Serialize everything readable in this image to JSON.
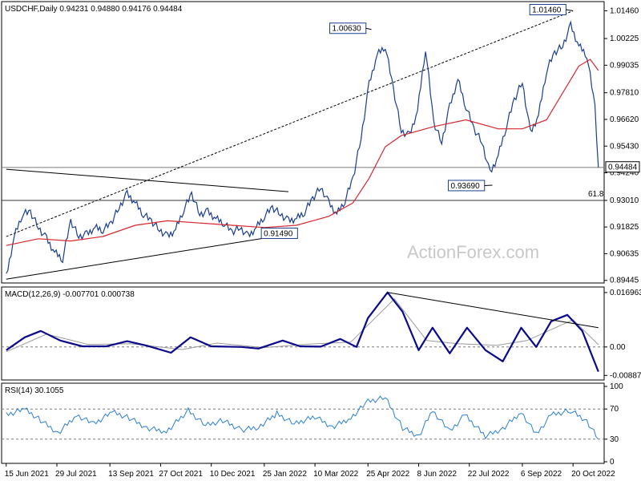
{
  "chart_data": [
    {
      "type": "line",
      "panel": "price",
      "header": "USDCHF,Daily  0.94231 0.94880 0.94176 0.94484",
      "yaxis": {
        "ticks": [
          1.0146,
          1.00225,
          0.99035,
          0.9781,
          0.9662,
          0.9543,
          0.9424,
          0.9301,
          0.91825,
          0.90635,
          0.89445
        ],
        "tick_labels": [
          "1.01460",
          "1.00225",
          "0.99035",
          "0.97810",
          "0.96620",
          "0.95430",
          "0.94240",
          "0.93010",
          "0.91825",
          "0.90635",
          "0.89445"
        ],
        "range": [
          0.894,
          1.018
        ]
      },
      "last_price": 0.94484,
      "last_price_label": "0.94484",
      "pivots": [
        {
          "label": "1.00630",
          "date": "2022-04-28",
          "value": 1.0063
        },
        {
          "label": "1.01460",
          "date": "2022-10-20",
          "value": 1.0146
        },
        {
          "label": "0.93690",
          "date": "2022-08-11",
          "value": 0.9369
        },
        {
          "label": "0.91490",
          "date": "2022-01-28",
          "value": 0.9149
        }
      ],
      "fib_label": "61.8",
      "fib_level": 0.9301,
      "horizontal_line": 0.9448,
      "series": [
        {
          "kind": "ohlc_close",
          "points": [
            [
              "2021-06-15",
              0.896
            ],
            [
              "2021-06-22",
              0.914
            ],
            [
              "2021-06-29",
              0.924
            ],
            [
              "2021-07-06",
              0.925
            ],
            [
              "2021-07-13",
              0.918
            ],
            [
              "2021-07-20",
              0.913
            ],
            [
              "2021-07-27",
              0.907
            ],
            [
              "2021-08-03",
              0.904
            ],
            [
              "2021-08-10",
              0.921
            ],
            [
              "2021-08-17",
              0.914
            ],
            [
              "2021-08-24",
              0.915
            ],
            [
              "2021-08-31",
              0.918
            ],
            [
              "2021-09-07",
              0.917
            ],
            [
              "2021-09-14",
              0.92
            ],
            [
              "2021-09-21",
              0.927
            ],
            [
              "2021-09-28",
              0.933
            ],
            [
              "2021-10-05",
              0.929
            ],
            [
              "2021-10-12",
              0.924
            ],
            [
              "2021-10-19",
              0.921
            ],
            [
              "2021-10-26",
              0.917
            ],
            [
              "2021-11-02",
              0.914
            ],
            [
              "2021-11-09",
              0.917
            ],
            [
              "2021-11-16",
              0.926
            ],
            [
              "2021-11-23",
              0.933
            ],
            [
              "2021-11-30",
              0.924
            ],
            [
              "2021-12-07",
              0.925
            ],
            [
              "2021-12-14",
              0.922
            ],
            [
              "2021-12-21",
              0.92
            ],
            [
              "2021-12-28",
              0.916
            ],
            [
              "2022-01-04",
              0.918
            ],
            [
              "2022-01-11",
              0.914
            ],
            [
              "2022-01-18",
              0.918
            ],
            [
              "2022-01-25",
              0.923
            ],
            [
              "2022-02-01",
              0.927
            ],
            [
              "2022-02-08",
              0.924
            ],
            [
              "2022-02-15",
              0.921
            ],
            [
              "2022-02-22",
              0.922
            ],
            [
              "2022-03-01",
              0.925
            ],
            [
              "2022-03-08",
              0.931
            ],
            [
              "2022-03-15",
              0.936
            ],
            [
              "2022-03-22",
              0.929
            ],
            [
              "2022-03-29",
              0.924
            ],
            [
              "2022-04-05",
              0.93
            ],
            [
              "2022-04-12",
              0.94
            ],
            [
              "2022-04-19",
              0.958
            ],
            [
              "2022-04-26",
              0.982
            ],
            [
              "2022-05-03",
              0.995
            ],
            [
              "2022-05-10",
              0.999
            ],
            [
              "2022-05-17",
              0.98
            ],
            [
              "2022-05-24",
              0.961
            ],
            [
              "2022-05-31",
              0.959
            ],
            [
              "2022-06-07",
              0.97
            ],
            [
              "2022-06-14",
              0.998
            ],
            [
              "2022-06-21",
              0.965
            ],
            [
              "2022-06-28",
              0.956
            ],
            [
              "2022-07-05",
              0.972
            ],
            [
              "2022-07-12",
              0.984
            ],
            [
              "2022-07-19",
              0.972
            ],
            [
              "2022-07-26",
              0.962
            ],
            [
              "2022-08-02",
              0.956
            ],
            [
              "2022-08-09",
              0.942
            ],
            [
              "2022-08-16",
              0.95
            ],
            [
              "2022-08-23",
              0.963
            ],
            [
              "2022-08-30",
              0.975
            ],
            [
              "2022-09-06",
              0.983
            ],
            [
              "2022-09-13",
              0.96
            ],
            [
              "2022-09-20",
              0.968
            ],
            [
              "2022-09-27",
              0.988
            ],
            [
              "2022-10-04",
              0.996
            ],
            [
              "2022-10-11",
              0.999
            ],
            [
              "2022-10-18",
              1.008
            ],
            [
              "2022-10-25",
              0.999
            ],
            [
              "2022-11-01",
              0.995
            ],
            [
              "2022-11-08",
              0.972
            ],
            [
              "2022-11-11",
              0.9448
            ]
          ]
        },
        {
          "kind": "ma",
          "points": [
            [
              "2021-06-15",
              0.91
            ],
            [
              "2021-07-13",
              0.913
            ],
            [
              "2021-08-10",
              0.912
            ],
            [
              "2021-09-07",
              0.914
            ],
            [
              "2021-10-05",
              0.919
            ],
            [
              "2021-11-02",
              0.921
            ],
            [
              "2021-11-30",
              0.92
            ],
            [
              "2021-12-28",
              0.919
            ],
            [
              "2022-01-25",
              0.918
            ],
            [
              "2022-02-22",
              0.919
            ],
            [
              "2022-03-22",
              0.923
            ],
            [
              "2022-04-12",
              0.929
            ],
            [
              "2022-04-26",
              0.94
            ],
            [
              "2022-05-10",
              0.954
            ],
            [
              "2022-05-24",
              0.959
            ],
            [
              "2022-06-21",
              0.963
            ],
            [
              "2022-07-19",
              0.966
            ],
            [
              "2022-08-16",
              0.962
            ],
            [
              "2022-09-06",
              0.962
            ],
            [
              "2022-09-27",
              0.966
            ],
            [
              "2022-10-11",
              0.978
            ],
            [
              "2022-10-25",
              0.99
            ],
            [
              "2022-11-04",
              0.993
            ],
            [
              "2022-11-11",
              0.988
            ]
          ]
        }
      ],
      "trendlines": [
        {
          "style": "dotted",
          "from": [
            "2021-06-15",
            0.914
          ],
          "to": [
            "2022-10-20",
            1.0146
          ]
        },
        {
          "style": "solid",
          "from": [
            "2021-06-15",
            0.944
          ],
          "to": [
            "2022-02-15",
            0.934
          ]
        },
        {
          "style": "solid",
          "from": [
            "2021-06-15",
            0.895
          ],
          "to": [
            "2022-02-15",
            0.915
          ]
        }
      ]
    },
    {
      "type": "line",
      "panel": "macd",
      "header": "MACD(12,26,9) -0.007701 0.000738",
      "yaxis": {
        "ticks": [
          0.016963,
          0.0,
          -0.008875
        ],
        "tick_labels": [
          "0.016963",
          "0.00",
          "-0.008875"
        ],
        "range": [
          -0.0098,
          0.0177
        ]
      },
      "series": [
        {
          "kind": "macd",
          "points": [
            [
              "2021-06-15",
              -0.001
            ],
            [
              "2021-07-01",
              0.003
            ],
            [
              "2021-07-15",
              0.005
            ],
            [
              "2021-08-01",
              0.002
            ],
            [
              "2021-08-20",
              0.0002
            ],
            [
              "2021-09-10",
              0.0002
            ],
            [
              "2021-09-28",
              0.0018
            ],
            [
              "2021-10-15",
              0.0004
            ],
            [
              "2021-11-05",
              -0.0018
            ],
            [
              "2021-11-22",
              0.003
            ],
            [
              "2021-12-10",
              0.0002
            ],
            [
              "2022-01-05",
              0.0
            ],
            [
              "2022-01-20",
              -0.0005
            ],
            [
              "2022-02-10",
              0.002
            ],
            [
              "2022-02-25",
              0.0002
            ],
            [
              "2022-03-15",
              0.0001
            ],
            [
              "2022-04-01",
              0.0025
            ],
            [
              "2022-04-15",
              0.0
            ],
            [
              "2022-04-25",
              0.009
            ],
            [
              "2022-05-12",
              0.017
            ],
            [
              "2022-05-25",
              0.011
            ],
            [
              "2022-06-08",
              -0.001
            ],
            [
              "2022-06-20",
              0.006
            ],
            [
              "2022-07-05",
              -0.002
            ],
            [
              "2022-07-20",
              0.006
            ],
            [
              "2022-08-05",
              -0.001
            ],
            [
              "2022-08-20",
              -0.0045
            ],
            [
              "2022-09-05",
              0.006
            ],
            [
              "2022-09-18",
              0.0
            ],
            [
              "2022-10-01",
              0.008
            ],
            [
              "2022-10-15",
              0.01
            ],
            [
              "2022-10-28",
              0.005
            ],
            [
              "2022-11-11",
              -0.0077
            ]
          ]
        },
        {
          "kind": "signal",
          "points": [
            [
              "2021-06-15",
              -0.0015
            ],
            [
              "2021-07-20",
              0.004
            ],
            [
              "2021-08-25",
              0.0008
            ],
            [
              "2021-10-01",
              0.001
            ],
            [
              "2021-11-15",
              -0.0008
            ],
            [
              "2021-12-15",
              0.0012
            ],
            [
              "2022-01-25",
              -0.0002
            ],
            [
              "2022-03-01",
              0.0008
            ],
            [
              "2022-04-10",
              0.0015
            ],
            [
              "2022-05-18",
              0.015
            ],
            [
              "2022-06-15",
              0.002
            ],
            [
              "2022-07-12",
              0.001
            ],
            [
              "2022-08-15",
              0.0005
            ],
            [
              "2022-09-10",
              0.002
            ],
            [
              "2022-10-20",
              0.0085
            ],
            [
              "2022-11-11",
              0.0007
            ]
          ]
        }
      ],
      "trendline": {
        "from": [
          "2022-05-12",
          0.017
        ],
        "to": [
          "2022-11-11",
          0.006
        ]
      }
    },
    {
      "type": "line",
      "panel": "rsi",
      "header": "RSI(14) 30.1055",
      "yaxis": {
        "ticks": [
          100,
          70,
          30,
          0
        ],
        "tick_labels": [
          "100",
          "70",
          "30",
          "0"
        ],
        "range": [
          0,
          100
        ]
      },
      "series": [
        {
          "kind": "rsi",
          "points": [
            [
              "2021-06-15",
              62
            ],
            [
              "2021-07-01",
              70
            ],
            [
              "2021-07-15",
              55
            ],
            [
              "2021-07-30",
              38
            ],
            [
              "2021-08-15",
              62
            ],
            [
              "2021-08-30",
              50
            ],
            [
              "2021-09-15",
              66
            ],
            [
              "2021-09-30",
              58
            ],
            [
              "2021-10-15",
              45
            ],
            [
              "2021-11-01",
              40
            ],
            [
              "2021-11-20",
              68
            ],
            [
              "2021-12-05",
              48
            ],
            [
              "2021-12-20",
              55
            ],
            [
              "2022-01-05",
              42
            ],
            [
              "2022-01-20",
              46
            ],
            [
              "2022-02-05",
              64
            ],
            [
              "2022-02-20",
              50
            ],
            [
              "2022-03-10",
              60
            ],
            [
              "2022-03-25",
              46
            ],
            [
              "2022-04-10",
              58
            ],
            [
              "2022-04-25",
              80
            ],
            [
              "2022-05-10",
              85
            ],
            [
              "2022-05-25",
              45
            ],
            [
              "2022-06-08",
              34
            ],
            [
              "2022-06-20",
              68
            ],
            [
              "2022-07-05",
              40
            ],
            [
              "2022-07-18",
              62
            ],
            [
              "2022-08-05",
              34
            ],
            [
              "2022-08-20",
              44
            ],
            [
              "2022-09-05",
              66
            ],
            [
              "2022-09-18",
              36
            ],
            [
              "2022-10-01",
              62
            ],
            [
              "2022-10-18",
              68
            ],
            [
              "2022-11-01",
              54
            ],
            [
              "2022-11-11",
              30
            ]
          ]
        }
      ]
    }
  ],
  "x_axis": {
    "tick_labels": [
      "15 Jun 2021",
      "29 Jul 2021",
      "13 Sep 2021",
      "27 Oct 2021",
      "10 Dec 2021",
      "25 Jan 2022",
      "10 Mar 2022",
      "25 Apr 2022",
      "8 Jun 2022",
      "22 Jul 2022",
      "6 Sep 2022",
      "20 Oct 2022"
    ],
    "tick_dates": [
      "2021-06-15",
      "2021-07-29",
      "2021-09-13",
      "2021-10-27",
      "2021-12-10",
      "2022-01-25",
      "2022-03-10",
      "2022-04-25",
      "2022-06-08",
      "2022-07-22",
      "2022-09-06",
      "2022-10-20"
    ],
    "range": [
      "2021-06-11",
      "2022-11-16"
    ]
  },
  "watermark": "ActionForex.com",
  "colors": {
    "price": "#1a3d8f",
    "ma": "#d7262e",
    "macd": "#0a0a8a",
    "signal": "#9a9a9a",
    "rsi": "#2a7fd4",
    "grid": "#7a7a7a"
  }
}
